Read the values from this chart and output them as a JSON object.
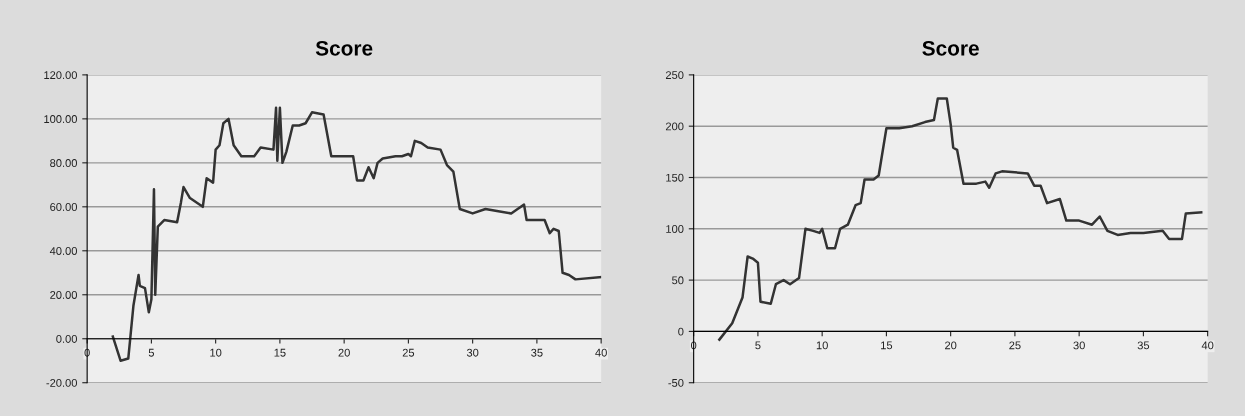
{
  "chart_data": [
    {
      "type": "line",
      "title": "Score",
      "grid": "y",
      "marker": "none",
      "line_style": "solid",
      "xlim": [
        0,
        40
      ],
      "xticks": [
        0,
        5,
        10,
        15,
        20,
        25,
        30,
        35,
        40
      ],
      "ylim": [
        -20,
        120
      ],
      "yticks": [
        {
          "value": -20,
          "label": "-20.00"
        },
        {
          "value": 0,
          "label": "0.00"
        },
        {
          "value": 20,
          "label": "20.00"
        },
        {
          "value": 40,
          "label": "40.00"
        },
        {
          "value": 60,
          "label": "60.00"
        },
        {
          "value": 80,
          "label": "80.00"
        },
        {
          "value": 100,
          "label": "100.00"
        },
        {
          "value": 120,
          "label": "120.00"
        }
      ],
      "series": [
        {
          "color": "#333333",
          "x": [
            2,
            2.6,
            3.2,
            3.6,
            4,
            4.1,
            4.5,
            4.8,
            5,
            5.2,
            5.3,
            5.5,
            6,
            7,
            7.3,
            7.5,
            8,
            9,
            9.3,
            9.8,
            10,
            10.3,
            10.6,
            11,
            11.4,
            12,
            13,
            13.5,
            14.5,
            14.7,
            14.8,
            15,
            15.2,
            15.5,
            16,
            16.5,
            17,
            17.5,
            18.4,
            19,
            20,
            20.7,
            21,
            21.5,
            21.9,
            22.3,
            22.6,
            23,
            24,
            24.5,
            25,
            25.2,
            25.5,
            26,
            26.5,
            27.5,
            28,
            28.5,
            29,
            30,
            31,
            32,
            33,
            33.5,
            34,
            34.2,
            35,
            35.6,
            36,
            36.3,
            36.7,
            37,
            37.5,
            38,
            40
          ],
          "values": [
            1,
            -10,
            -9,
            15,
            29,
            24,
            23,
            12,
            18,
            68,
            20,
            51,
            54,
            53,
            62,
            69,
            64,
            60,
            73,
            71,
            86,
            88,
            98,
            100,
            88,
            83,
            83,
            87,
            86,
            105,
            81,
            105,
            80,
            85,
            97,
            97,
            98,
            103,
            102,
            83,
            83,
            83,
            72,
            72,
            78,
            73,
            80,
            82,
            83,
            83,
            84,
            83,
            90,
            89,
            87,
            86,
            79,
            76,
            59,
            57,
            59,
            58,
            57,
            59,
            61,
            54,
            54,
            54,
            48,
            50,
            49,
            30,
            29,
            27,
            28
          ]
        }
      ]
    },
    {
      "type": "line",
      "title": "Score",
      "grid": "y",
      "marker": "none",
      "line_style": "solid",
      "xlim": [
        0,
        40
      ],
      "xticks": [
        0,
        5,
        10,
        15,
        20,
        25,
        30,
        35,
        40
      ],
      "ylim": [
        -50,
        250
      ],
      "yticks": [
        -50,
        0,
        50,
        100,
        150,
        200,
        250
      ],
      "series": [
        {
          "color": "#333333",
          "x": [
            2,
            3,
            3.8,
            4.2,
            4.6,
            5,
            5.2,
            6,
            6.4,
            7,
            7.5,
            8.2,
            8.7,
            9.3,
            9.8,
            10,
            10.4,
            11,
            11.4,
            12,
            12.6,
            13,
            13.3,
            14,
            14.4,
            15,
            16,
            17,
            18,
            18.7,
            19,
            19.7,
            20,
            20.2,
            20.5,
            21,
            22,
            22.7,
            23,
            23.5,
            24,
            26,
            26.5,
            27,
            27.5,
            28.5,
            29,
            30,
            31,
            31.6,
            32.2,
            33,
            34,
            35,
            36.5,
            37,
            38,
            38.3,
            39.5
          ],
          "values": [
            -8,
            8,
            33,
            73,
            71,
            67,
            29,
            27,
            46,
            50,
            46,
            52,
            100,
            98,
            96,
            100,
            81,
            81,
            100,
            104,
            123,
            125,
            148,
            148,
            152,
            198,
            198,
            200,
            204,
            206,
            227,
            227,
            202,
            179,
            177,
            144,
            144,
            146,
            140,
            154,
            156,
            154,
            142,
            142,
            125,
            129,
            108,
            108,
            104,
            112,
            98,
            94,
            96,
            96,
            98,
            90,
            90,
            115,
            116
          ]
        }
      ]
    }
  ]
}
